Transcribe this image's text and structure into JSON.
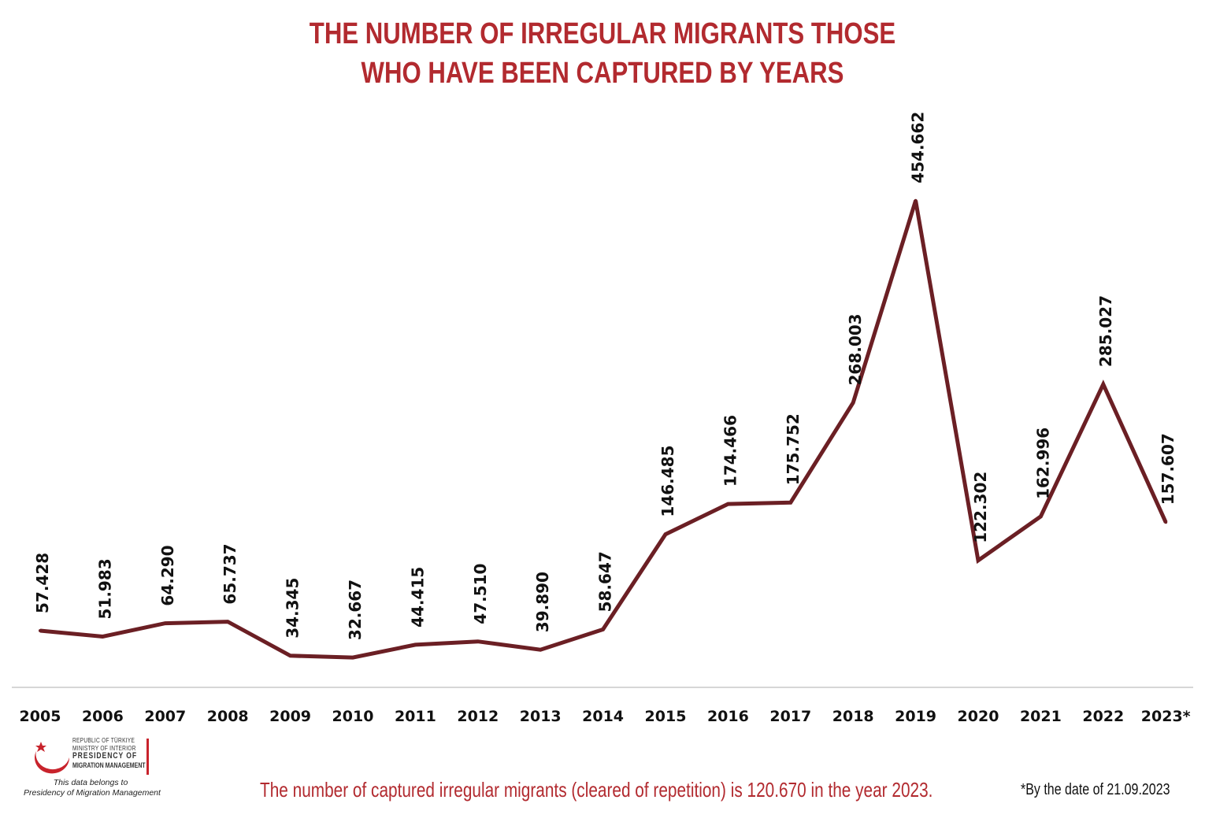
{
  "chart_data": {
    "type": "line",
    "title_lines": [
      "THE NUMBER OF IRREGULAR MIGRANTS THOSE",
      "WHO HAVE BEEN CAPTURED BY YEARS"
    ],
    "categories": [
      "2005",
      "2006",
      "2007",
      "2008",
      "2009",
      "2010",
      "2011",
      "2012",
      "2013",
      "2014",
      "2015",
      "2016",
      "2017",
      "2018",
      "2019",
      "2020",
      "2021",
      "2022",
      "2023*"
    ],
    "values": [
      57428,
      51983,
      64290,
      65737,
      34345,
      32667,
      44415,
      47510,
      39890,
      58647,
      146485,
      174466,
      175752,
      268003,
      454662,
      122302,
      162996,
      285027,
      157607
    ],
    "value_labels": [
      "57.428",
      "51.983",
      "64.290",
      "65.737",
      "34.345",
      "32.667",
      "44.415",
      "47.510",
      "39.890",
      "58.647",
      "146.485",
      "174.466",
      "175.752",
      "268.003",
      "454.662",
      "122.302",
      "162.996",
      "285.027",
      "157.607"
    ],
    "xlabel": "",
    "ylabel": "",
    "grid": false,
    "legend": "none",
    "line_color": "#6b1f24",
    "title_color": "#b22a2f"
  },
  "logo": {
    "line1": "REPUBLIC OF TÜRKIYE",
    "line2": "MINISTRY OF INTERIOR",
    "line3": "PRESIDENCY OF",
    "line4": "MIGRATION MANAGEMENT",
    "credit_line1": "This data belongs to",
    "credit_line2": "Presidency of Migration Management",
    "icon": "crescent-star-icon"
  },
  "footnote": "The number of captured irregular migrants (cleared of repetition) is 120.670  in the year 2023.",
  "date_note": "*By the date of 21.09.2023"
}
